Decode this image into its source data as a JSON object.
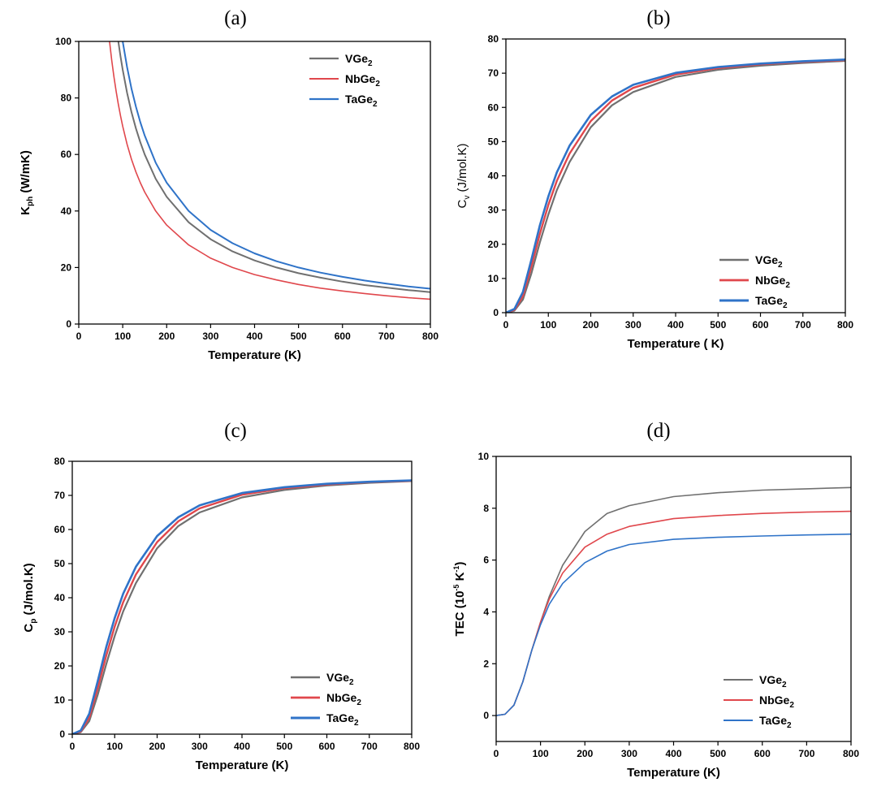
{
  "colors": {
    "VGe2": "#707070",
    "NbGe2": "#e0474c",
    "TaGe2": "#2f73c8"
  },
  "chart_data": [
    {
      "panel": "(a)",
      "type": "line",
      "xlabel": "Temperature (K)",
      "ylabel": {
        "main": "K",
        "sub": "ph",
        "rest": " (W/mK)"
      },
      "xlim": [
        0,
        800
      ],
      "ylim": [
        0,
        100
      ],
      "xticks": [
        0,
        100,
        200,
        300,
        400,
        500,
        600,
        700,
        800
      ],
      "yticks": [
        0,
        20,
        40,
        60,
        80,
        100
      ],
      "legend_position": "top-right",
      "x": [
        70,
        75,
        80,
        85,
        90,
        95,
        100,
        110,
        120,
        130,
        140,
        150,
        175,
        200,
        250,
        300,
        350,
        400,
        450,
        500,
        550,
        600,
        650,
        700,
        750,
        800
      ],
      "series": [
        {
          "name": "VGe",
          "sub": "2",
          "key": "VGe2",
          "width": 2,
          "values": [
            null,
            null,
            null,
            null,
            100,
            94.7,
            90,
            81.8,
            75,
            69.2,
            64.3,
            60,
            51.4,
            45,
            36,
            30,
            25.7,
            22.5,
            20,
            18,
            16.4,
            15,
            13.8,
            12.9,
            12,
            11.3
          ]
        },
        {
          "name": "NbGe",
          "sub": "2",
          "key": "NbGe2",
          "width": 1.6,
          "values": [
            100,
            93.3,
            87.5,
            82.4,
            77.8,
            73.7,
            70,
            63.6,
            58.3,
            53.8,
            50,
            46.7,
            40,
            35,
            28,
            23.3,
            20,
            17.5,
            15.6,
            14,
            12.7,
            11.7,
            10.8,
            10,
            9.3,
            8.8
          ]
        },
        {
          "name": "TaGe",
          "sub": "2",
          "key": "TaGe2",
          "width": 2,
          "values": [
            null,
            null,
            null,
            null,
            null,
            null,
            100,
            90.9,
            83.3,
            76.9,
            71.4,
            66.7,
            57.1,
            50,
            40,
            33.3,
            28.6,
            25,
            22.2,
            20,
            18.2,
            16.7,
            15.4,
            14.3,
            13.3,
            12.5
          ]
        }
      ]
    },
    {
      "panel": "(b)",
      "type": "line",
      "xlabel": "Temperature ( K)",
      "ylabel": {
        "main": "C",
        "sub": "v",
        "rest": " (J/mol.K)"
      },
      "xlim": [
        0,
        800
      ],
      "ylim": [
        0,
        80
      ],
      "xticks": [
        0,
        100,
        200,
        300,
        400,
        500,
        600,
        700,
        800
      ],
      "yticks": [
        0,
        10,
        20,
        30,
        40,
        50,
        60,
        70,
        80
      ],
      "legend_position": "bottom-right",
      "x": [
        0,
        20,
        40,
        60,
        80,
        100,
        120,
        150,
        200,
        250,
        300,
        400,
        500,
        600,
        700,
        800
      ],
      "series": [
        {
          "name": "VGe",
          "sub": "2",
          "key": "VGe2",
          "width": 2.2,
          "values": [
            0,
            0.6,
            3.8,
            11.5,
            20.5,
            28.7,
            35.8,
            44,
            54.2,
            60.6,
            64.5,
            68.9,
            71,
            72.2,
            73,
            73.6
          ]
        },
        {
          "name": "NbGe",
          "sub": "2",
          "key": "NbGe2",
          "width": 2.4,
          "values": [
            0,
            0.8,
            4.8,
            13.5,
            23,
            31.5,
            38.5,
            46.5,
            56,
            62,
            65.7,
            69.6,
            71.5,
            72.6,
            73.3,
            73.8
          ]
        },
        {
          "name": "TaGe",
          "sub": "2",
          "key": "TaGe2",
          "width": 2.6,
          "values": [
            0,
            1.1,
            6,
            15.5,
            25.5,
            34,
            41,
            48.8,
            57.8,
            63.2,
            66.6,
            70.1,
            71.8,
            72.8,
            73.5,
            74
          ]
        }
      ]
    },
    {
      "panel": "(c)",
      "type": "line",
      "xlabel": "Temperature (K)",
      "ylabel": {
        "main": "C",
        "sub": "p",
        "rest": " (J/mol.K)"
      },
      "xlim": [
        0,
        800
      ],
      "ylim": [
        0,
        80
      ],
      "xticks": [
        0,
        100,
        200,
        300,
        400,
        500,
        600,
        700,
        800
      ],
      "yticks": [
        0,
        10,
        20,
        30,
        40,
        50,
        60,
        70,
        80
      ],
      "legend_position": "bottom-right",
      "x": [
        0,
        20,
        40,
        60,
        80,
        100,
        120,
        150,
        200,
        250,
        300,
        400,
        500,
        600,
        700,
        800
      ],
      "series": [
        {
          "name": "VGe",
          "sub": "2",
          "key": "VGe2",
          "width": 2.2,
          "values": [
            0,
            0.6,
            3.8,
            11.5,
            20.5,
            28.8,
            36,
            44.3,
            54.5,
            61,
            65,
            69.4,
            71.6,
            72.9,
            73.7,
            74.2
          ]
        },
        {
          "name": "NbGe",
          "sub": "2",
          "key": "NbGe2",
          "width": 2.4,
          "values": [
            0,
            0.8,
            4.8,
            13.5,
            23,
            31.6,
            38.7,
            46.8,
            56.3,
            62.4,
            66.2,
            70.2,
            72.1,
            73.2,
            73.9,
            74.3
          ]
        },
        {
          "name": "TaGe",
          "sub": "2",
          "key": "TaGe2",
          "width": 2.6,
          "values": [
            0,
            1.1,
            6,
            15.5,
            25.5,
            34.1,
            41.2,
            49.1,
            58.1,
            63.6,
            67.1,
            70.7,
            72.4,
            73.4,
            74,
            74.4
          ]
        }
      ]
    },
    {
      "panel": "(d)",
      "type": "line",
      "xlabel": "Temperature (K)",
      "ylabel": {
        "main": "TEC (10",
        "sup": "-5",
        "rest": " K",
        "sup2": "-1",
        "end": ")"
      },
      "xlim": [
        0,
        800
      ],
      "ylim": [
        -1,
        10
      ],
      "xticks": [
        0,
        100,
        200,
        300,
        400,
        500,
        600,
        700,
        800
      ],
      "yticks": [
        0,
        2,
        4,
        6,
        8,
        10
      ],
      "legend_position": "bottom-right",
      "x": [
        0,
        20,
        40,
        60,
        80,
        100,
        120,
        150,
        200,
        250,
        300,
        400,
        500,
        600,
        700,
        800
      ],
      "series": [
        {
          "name": "VGe",
          "sub": "2",
          "key": "VGe2",
          "width": 1.6,
          "values": [
            0,
            0.05,
            0.4,
            1.3,
            2.5,
            3.6,
            4.6,
            5.8,
            7.1,
            7.8,
            8.1,
            8.45,
            8.6,
            8.7,
            8.75,
            8.8
          ]
        },
        {
          "name": "NbGe",
          "sub": "2",
          "key": "NbGe2",
          "width": 1.6,
          "values": [
            0,
            0.05,
            0.4,
            1.3,
            2.5,
            3.6,
            4.5,
            5.5,
            6.5,
            7,
            7.3,
            7.6,
            7.72,
            7.8,
            7.85,
            7.88
          ]
        },
        {
          "name": "TaGe",
          "sub": "2",
          "key": "TaGe2",
          "width": 1.6,
          "values": [
            0,
            0.05,
            0.4,
            1.3,
            2.5,
            3.5,
            4.3,
            5.1,
            5.9,
            6.35,
            6.6,
            6.8,
            6.88,
            6.93,
            6.97,
            7
          ]
        }
      ]
    }
  ]
}
